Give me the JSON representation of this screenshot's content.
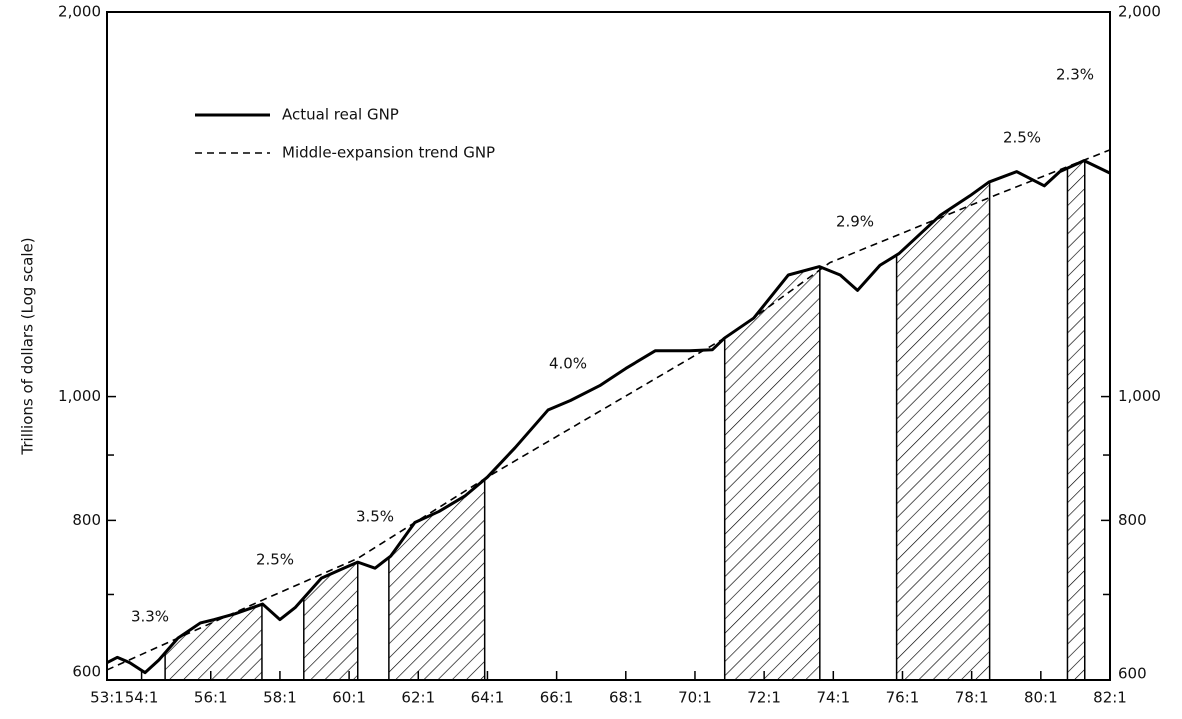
{
  "chart_data": {
    "type": "line",
    "y_label": "Trillions of dollars (Log scale)",
    "log_scale": true,
    "legend_position": "upper left",
    "series": [
      {
        "name": "Actual real GNP",
        "color": "#000000",
        "style": "solid",
        "x": [
          53.0,
          53.3,
          53.66,
          54.1,
          54.5,
          55.05,
          55.7,
          56.1,
          56.7,
          57.5,
          58.0,
          58.45,
          59.2,
          59.9,
          60.25,
          60.75,
          61.2,
          61.9,
          62.6,
          63.35,
          64.0,
          64.8,
          65.75,
          66.4,
          67.25,
          68.0,
          68.85,
          69.85,
          70.5,
          70.85,
          71.7,
          72.7,
          73.6,
          74.2,
          74.7,
          75.35,
          75.9,
          77.1,
          77.95,
          78.5,
          79.3,
          80.1,
          80.55,
          81.25,
          82.0
        ],
        "values": [
          619,
          625,
          619,
          608,
          622,
          647,
          665,
          669,
          676,
          688,
          669,
          684,
          721,
          735,
          742,
          734,
          750,
          797,
          813,
          836,
          865,
          912,
          976,
          993,
          1020,
          1052,
          1086,
          1086,
          1088,
          1111,
          1152,
          1245,
          1264,
          1245,
          1211,
          1267,
          1294,
          1387,
          1436,
          1472,
          1500,
          1462,
          1500,
          1530,
          1496
        ]
      },
      {
        "name": "Middle-expansion trend GNP",
        "color": "#000000",
        "style": "dashed",
        "x": [
          53.0,
          57.5,
          60.25,
          64.0,
          71.0,
          73.9,
          78.7,
          82.0
        ],
        "values": [
          611,
          693,
          747,
          865,
          1117,
          1273,
          1438,
          1560
        ]
      }
    ],
    "shaded_periods": [
      [
        54.68,
        57.48
      ],
      [
        58.69,
        60.25
      ],
      [
        61.15,
        63.92
      ],
      [
        70.86,
        73.61
      ],
      [
        75.83,
        78.52
      ],
      [
        80.77,
        81.27
      ]
    ],
    "annotations": [
      "3.3%",
      "2.5%",
      "3.5%",
      "4.0%",
      "2.9%",
      "2.5%",
      "2.3%"
    ],
    "xlim": [
      53,
      82
    ],
    "xticks": [
      {
        "value": 53,
        "label": "53:1"
      },
      {
        "value": 54,
        "label": "54:1"
      },
      {
        "value": 56,
        "label": "56:1"
      },
      {
        "value": 58,
        "label": "58:1"
      },
      {
        "value": 60,
        "label": "60:1"
      },
      {
        "value": 62,
        "label": "62:1"
      },
      {
        "value": 64,
        "label": "64:1"
      },
      {
        "value": 66,
        "label": "66:1"
      },
      {
        "value": 68,
        "label": "68:1"
      },
      {
        "value": 70,
        "label": "70:1"
      },
      {
        "value": 72,
        "label": "72:1"
      },
      {
        "value": 74,
        "label": "74:1"
      },
      {
        "value": 76,
        "label": "76:1"
      },
      {
        "value": 78,
        "label": "78:1"
      },
      {
        "value": 80,
        "label": "80:1"
      },
      {
        "value": 82,
        "label": "82:1"
      }
    ],
    "ylim": [
      600,
      2000
    ],
    "yticks": [
      600,
      800,
      {
        "value": 1000,
        "label": "1,000"
      },
      {
        "value": 2000,
        "label": "2,000"
      }
    ],
    "yminor_ticks": [
      700,
      900
    ]
  }
}
